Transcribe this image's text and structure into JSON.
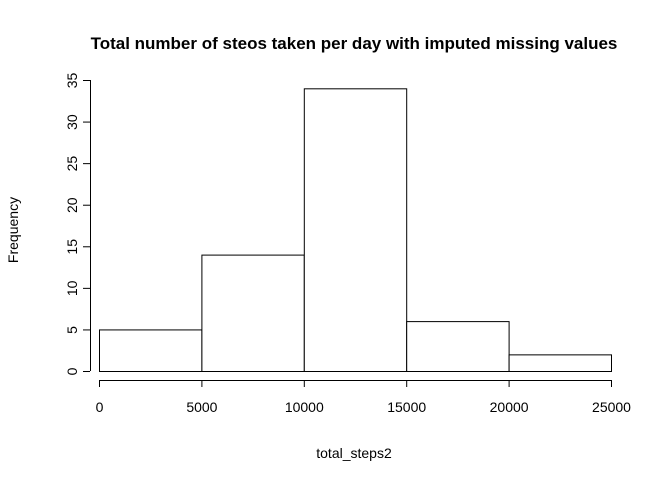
{
  "chart_data": {
    "type": "bar",
    "title": "Total number of steos taken per day with imputed missing values",
    "xlabel": "total_steps2",
    "ylabel": "Frequency",
    "bins": [
      {
        "from": 0,
        "to": 5000,
        "count": 5
      },
      {
        "from": 5000,
        "to": 10000,
        "count": 14
      },
      {
        "from": 10000,
        "to": 15000,
        "count": 34
      },
      {
        "from": 15000,
        "to": 20000,
        "count": 6
      },
      {
        "from": 20000,
        "to": 25000,
        "count": 2
      }
    ],
    "xlim": [
      0,
      25000
    ],
    "ylim": [
      0,
      35
    ],
    "xticks": [
      0,
      5000,
      10000,
      15000,
      20000,
      25000
    ],
    "yticks": [
      0,
      5,
      10,
      15,
      20,
      25,
      30,
      35
    ],
    "grid": false,
    "bar_fill": "#ffffff",
    "bar_stroke": "#000000"
  }
}
